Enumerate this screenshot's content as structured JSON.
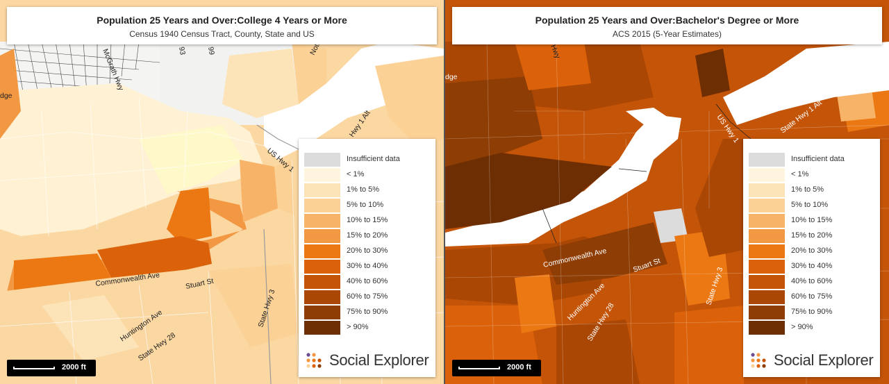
{
  "left_map": {
    "title": "Population 25 Years and Over:College 4 Years or More",
    "subtitle": "Census 1940 Census Tract, County, State and US",
    "scale_label": "2000 ft",
    "road_labels": {
      "mcgrath": "McGrath Hwy",
      "hwy1alt": "Hwy 1 Alt",
      "ushwy1": "US Hwy 1",
      "commonwealth": "Commonwealth Ave",
      "stuart": "Stuart St",
      "huntington": "Huntington Ave",
      "statehwy3": "State Hwy 3",
      "statehwy28": "State Hwy 28",
      "dge": "dge",
      "n93": "93",
      "n99": "99",
      "noto": "Noto"
    }
  },
  "right_map": {
    "title": "Population 25 Years and Over:Bachelor's Degree or More",
    "subtitle": "ACS 2015 (5-Year Estimates)",
    "scale_label": "2000 ft",
    "road_labels": {
      "hwy": "Hwy",
      "dge": "dge",
      "ushwy1": "US Hwy 1",
      "statehwy1alt": "State Hwy 1 Alt",
      "commonwealth": "Commonwealth Ave",
      "stuart": "Stuart St",
      "huntington": "Huntington Ave",
      "statehwy3": "State Hwy 3",
      "statehwy28": "State Hwy 28"
    }
  },
  "legend": {
    "items": [
      {
        "label": "Insufficient data",
        "color": "#dcdcdc"
      },
      {
        "label": "< 1%",
        "color": "#fff4de"
      },
      {
        "label": "1% to 5%",
        "color": "#fde3b8"
      },
      {
        "label": "5% to 10%",
        "color": "#fbd196"
      },
      {
        "label": "10% to 15%",
        "color": "#f7b468"
      },
      {
        "label": "15% to 20%",
        "color": "#f39842"
      },
      {
        "label": "20% to 30%",
        "color": "#ec7814"
      },
      {
        "label": "30% to 40%",
        "color": "#db620a"
      },
      {
        "label": "40% to 60%",
        "color": "#c45407"
      },
      {
        "label": "60% to 75%",
        "color": "#aa4705"
      },
      {
        "label": "75% to 90%",
        "color": "#8e3d05"
      },
      {
        "label": "> 90%",
        "color": "#6e2e03"
      }
    ]
  },
  "brand": {
    "name": "Social Explorer",
    "logo_icon": "dots-logo-icon"
  }
}
